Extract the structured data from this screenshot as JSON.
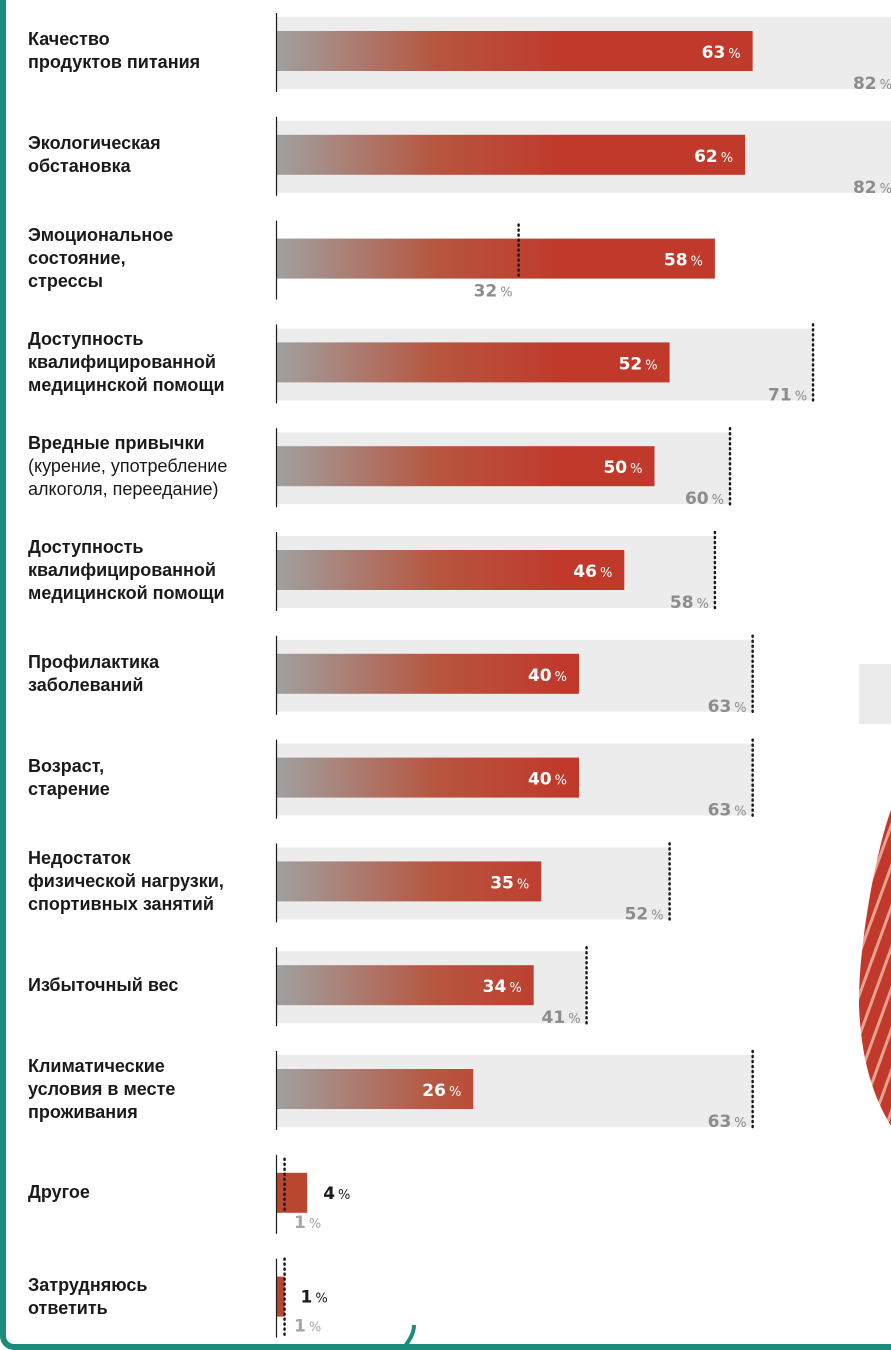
{
  "chart_data": {
    "type": "bar",
    "orientation": "horizontal",
    "unit": "%",
    "categories": [
      {
        "label": "Качество продуктов питания",
        "lines": [
          "Качество",
          "продуктов питания"
        ]
      },
      {
        "label": "Экологическая обстановка",
        "lines": [
          "Экологическая",
          "обстановка"
        ]
      },
      {
        "label": "Эмоциональное состояние, стрессы",
        "lines": [
          "Эмоциональное",
          "состояние,",
          "стрессы"
        ]
      },
      {
        "label": "Доступность квалифицированной медицинской помощи",
        "lines": [
          "Доступность",
          "квалифицированной",
          "медицинской помощи"
        ]
      },
      {
        "label": "Вредные привычки (курение, употребление алкоголя, переедание)",
        "lines": [
          "Вредные привычки"
        ],
        "note_lines": [
          "(курение, употребление",
          "алкоголя, переедание)"
        ]
      },
      {
        "label": "Доступность квалифицированной медицинской помощи",
        "lines": [
          "Доступность",
          "квалифицированной",
          "медицинской помощи"
        ]
      },
      {
        "label": "Профилактика заболеваний",
        "lines": [
          "Профилактика",
          "заболеваний"
        ]
      },
      {
        "label": "Возраст, старение",
        "lines": [
          "Возраст,",
          "старение"
        ]
      },
      {
        "label": "Недостаток физической нагрузки, спортивных занятий",
        "lines": [
          "Недостаток",
          "физической нагрузки,",
          "спортивных занятий"
        ]
      },
      {
        "label": "Избыточный вес",
        "lines": [
          "Избыточный вес"
        ]
      },
      {
        "label": "Климатические условия в месте проживания",
        "lines": [
          "Климатические",
          "условия в месте",
          "проживания"
        ]
      },
      {
        "label": "Другое",
        "lines": [
          "Другое"
        ]
      },
      {
        "label": "Затрудняюсь ответить",
        "lines": [
          "Затрудняюсь",
          "ответить"
        ]
      }
    ],
    "series": [
      {
        "color": "#c0392b",
        "values": [
          63,
          62,
          58,
          52,
          50,
          46,
          40,
          40,
          35,
          34,
          26,
          4,
          1
        ]
      },
      {
        "color": "#ececec",
        "values": [
          82,
          82,
          32,
          71,
          60,
          58,
          63,
          63,
          52,
          41,
          63,
          1,
          1
        ]
      }
    ],
    "value_suffix": "%",
    "colors": {
      "bar_end": "#c0392b",
      "bar_start": "#a0a0a0",
      "compare_bg": "#ececec",
      "compare_text": "#8c8c8c",
      "accent_border": "#1a8c7a"
    },
    "xlim": [
      0,
      100
    ],
    "grid": false,
    "legend": "none"
  }
}
